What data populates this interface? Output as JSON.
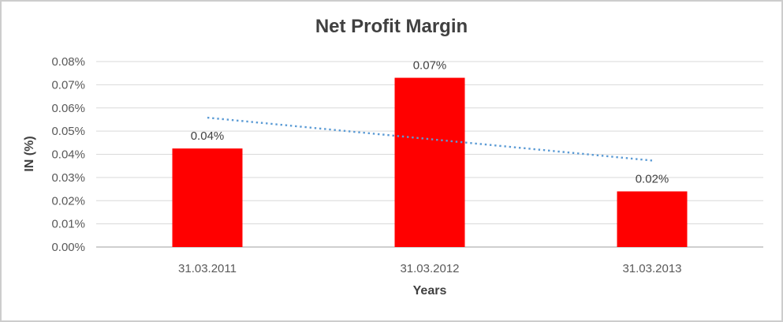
{
  "window": {
    "background": "#FFFFFF",
    "border_color": "#CDCDCD"
  },
  "chart_data": {
    "type": "bar",
    "title": "Net Profit Margin",
    "xlabel": "Years",
    "ylabel": "IN (%)",
    "categories": [
      "31.03.2011",
      "31.03.2012",
      "31.03.2013"
    ],
    "values": [
      0.0425,
      0.073,
      0.024
    ],
    "data_labels": [
      "0.04%",
      "0.07%",
      "0.02%"
    ],
    "y_ticks": [
      "0.00%",
      "0.01%",
      "0.02%",
      "0.03%",
      "0.04%",
      "0.05%",
      "0.06%",
      "0.07%",
      "0.08%"
    ],
    "ylim": [
      0,
      0.08
    ],
    "grid": true,
    "legend": "none",
    "trendline": {
      "type": "linear",
      "style": "dotted",
      "color": "#5B9BD5",
      "start_value": 0.0558,
      "end_value": 0.0373
    },
    "colors": {
      "bar": "#FF0000",
      "trendline": "#5B9BD5",
      "gridline": "#D9D9D9",
      "axis_line": "#BFBFBF",
      "title_text": "#404040",
      "tick_text": "#595959"
    }
  }
}
